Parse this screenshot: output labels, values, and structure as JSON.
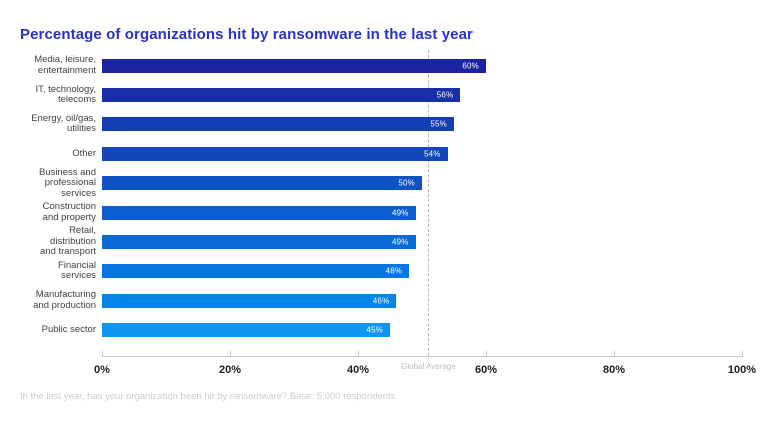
{
  "title": "Percentage of organizations hit by ransomware in the last year",
  "footnote": "In the last year, has your organization been hit by ransomware? Base: 5,000 respondents.",
  "axis": {
    "tick_labels": [
      "0%",
      "20%",
      "40%",
      "60%",
      "80%",
      "100%"
    ],
    "tick_values": [
      0,
      20,
      40,
      60,
      80,
      100
    ]
  },
  "global_average": {
    "label": "Global Average",
    "value_pct": 51
  },
  "colors": {
    "title": "#2832c8",
    "category_label": "#414141",
    "value_label": "#ffffff",
    "axis_line": "#c9c9c9",
    "axis_tick_label": "#1e1e1e",
    "global_average_line": "#b3b3b3",
    "global_average_label": "#bdbdbd",
    "footnote": "#cccccc",
    "background": "#ffffff"
  },
  "chart_data": {
    "type": "bar",
    "orientation": "horizontal",
    "title": "Percentage of organizations hit by ransomware in the last year",
    "categories": [
      "Media, leisure,\nentertainment",
      "IT, technology,\ntelecoms",
      "Energy, oil/gas,\nutilities",
      "Other",
      "Business and\nprofessional\nservices",
      "Construction\nand property",
      "Retail,\ndistribution\nand transport",
      "Financial\nservices",
      "Manufacturing\nand production",
      "Public sector"
    ],
    "values": [
      60,
      56,
      55,
      54,
      50,
      49,
      49,
      48,
      46,
      45
    ],
    "value_labels": [
      "60%",
      "56%",
      "55%",
      "54%",
      "50%",
      "49%",
      "49%",
      "48%",
      "46%",
      "45%"
    ],
    "xlabel": "",
    "ylabel": "",
    "xlim": [
      0,
      100
    ],
    "grid": false,
    "legend": "none",
    "annotations": [
      {
        "type": "vline",
        "label": "Global Average",
        "x": 51,
        "style": "dashed"
      }
    ],
    "bar_colors": [
      "#1a23a1",
      "#1730aa",
      "#143cb3",
      "#1147bb",
      "#0e52c4",
      "#0b5ecd",
      "#086ad6",
      "#0576df",
      "#0284e8",
      "#0d97f3"
    ]
  }
}
